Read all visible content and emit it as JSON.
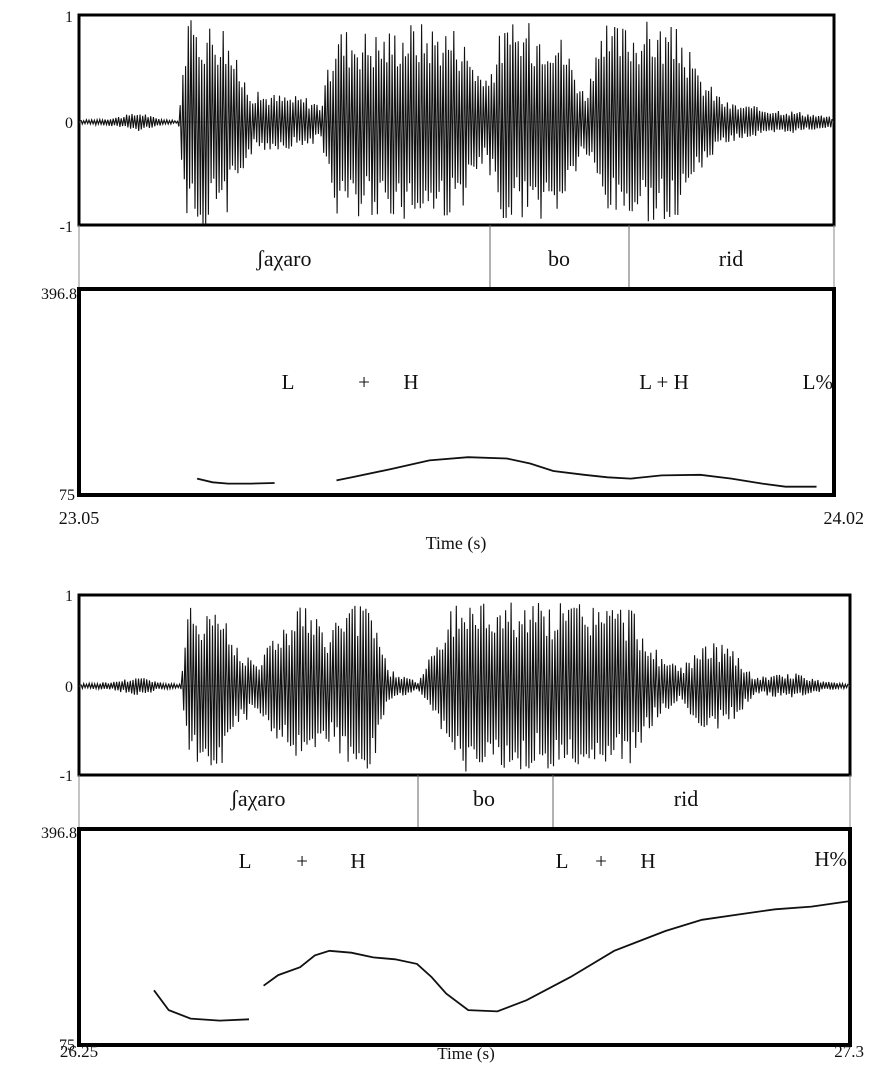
{
  "colors": {
    "ink": "#111111",
    "frame": "#000000",
    "grid": "#999999"
  },
  "chart_data": [
    {
      "type": "line",
      "subtype": "waveform-and-pitch-track",
      "waveform": {
        "y_ticks": [
          "1",
          "0",
          "-1"
        ],
        "ylim": [
          -1,
          1
        ],
        "envelope": [
          [
            0.0,
            0.02
          ],
          [
            0.04,
            0.04
          ],
          [
            0.08,
            0.1
          ],
          [
            0.1,
            0.04
          ],
          [
            0.13,
            0.01
          ],
          [
            0.14,
            1.0
          ],
          [
            0.19,
            1.0
          ],
          [
            0.21,
            0.55
          ],
          [
            0.23,
            0.3
          ],
          [
            0.3,
            0.25
          ],
          [
            0.32,
            0.18
          ],
          [
            0.34,
            0.95
          ],
          [
            0.4,
            0.9
          ],
          [
            0.44,
            1.0
          ],
          [
            0.5,
            0.95
          ],
          [
            0.52,
            0.7
          ],
          [
            0.54,
            0.4
          ],
          [
            0.56,
            0.95
          ],
          [
            0.63,
            1.0
          ],
          [
            0.65,
            0.7
          ],
          [
            0.67,
            0.3
          ],
          [
            0.7,
            0.95
          ],
          [
            0.76,
            1.0
          ],
          [
            0.8,
            0.9
          ],
          [
            0.82,
            0.5
          ],
          [
            0.86,
            0.2
          ],
          [
            0.9,
            0.15
          ],
          [
            0.96,
            0.1
          ],
          [
            1.0,
            0.05
          ]
        ]
      },
      "syllables": [
        {
          "label": "ʃaχaro",
          "start": 23.05,
          "end": 23.61
        },
        {
          "label": "bo",
          "start": 23.61,
          "end": 23.77
        },
        {
          "label": "rid",
          "start": 23.77,
          "end": 24.02
        }
      ],
      "pitch": {
        "ylim": [
          75,
          396.8
        ],
        "y_ticks": [
          "396.8",
          "75"
        ],
        "segments": [
          [
            [
              23.2,
              98
            ],
            [
              23.22,
              92
            ],
            [
              23.24,
              90
            ],
            [
              23.27,
              90
            ],
            [
              23.3,
              91
            ]
          ],
          [
            [
              23.38,
              95
            ],
            [
              23.4,
              100
            ],
            [
              23.45,
              113
            ],
            [
              23.5,
              127
            ],
            [
              23.55,
              132
            ],
            [
              23.6,
              130
            ],
            [
              23.63,
              122
            ],
            [
              23.66,
              110
            ],
            [
              23.7,
              104
            ],
            [
              23.73,
              100
            ],
            [
              23.76,
              98
            ],
            [
              23.8,
              103
            ],
            [
              23.85,
              104
            ],
            [
              23.89,
              98
            ],
            [
              23.93,
              90
            ],
            [
              23.96,
              85
            ],
            [
              24.0,
              85
            ]
          ]
        ]
      },
      "tones": [
        {
          "label": "L",
          "x": 23.308
        },
        {
          "label": "+",
          "x": 23.395
        },
        {
          "label": "H",
          "x": 23.437
        },
        {
          "label": "L + H",
          "x": 23.785
        },
        {
          "label": "L%",
          "x": 24.01
        }
      ],
      "x_range": [
        23.05,
        24.02
      ],
      "x_ticks": [
        "23.05",
        "24.02"
      ],
      "xlabel": "Time (s)"
    },
    {
      "type": "line",
      "subtype": "waveform-and-pitch-track",
      "waveform": {
        "y_ticks": [
          "1",
          "0",
          "-1"
        ],
        "ylim": [
          -1,
          1
        ],
        "envelope": [
          [
            0.0,
            0.03
          ],
          [
            0.04,
            0.05
          ],
          [
            0.08,
            0.12
          ],
          [
            0.1,
            0.05
          ],
          [
            0.13,
            0.02
          ],
          [
            0.14,
            0.9
          ],
          [
            0.18,
            1.0
          ],
          [
            0.2,
            0.5
          ],
          [
            0.23,
            0.3
          ],
          [
            0.26,
            0.7
          ],
          [
            0.29,
            1.0
          ],
          [
            0.32,
            0.6
          ],
          [
            0.34,
            0.9
          ],
          [
            0.38,
            1.0
          ],
          [
            0.4,
            0.2
          ],
          [
            0.44,
            0.05
          ],
          [
            0.49,
            1.0
          ],
          [
            0.57,
            1.0
          ],
          [
            0.6,
            0.95
          ],
          [
            0.66,
            1.0
          ],
          [
            0.72,
            0.9
          ],
          [
            0.74,
            0.5
          ],
          [
            0.78,
            0.2
          ],
          [
            0.82,
            0.55
          ],
          [
            0.85,
            0.4
          ],
          [
            0.88,
            0.1
          ],
          [
            0.93,
            0.15
          ],
          [
            0.97,
            0.05
          ],
          [
            1.0,
            0.03
          ]
        ]
      },
      "syllables": [
        {
          "label": "ʃaχaro",
          "start": 26.25,
          "end": 26.73
        },
        {
          "label": "bo",
          "start": 26.73,
          "end": 26.88
        },
        {
          "label": "rid",
          "start": 26.88,
          "end": 27.3
        }
      ],
      "pitch": {
        "ylim": [
          75,
          396.8
        ],
        "y_ticks": [
          "396.8",
          "75"
        ],
        "segments": [
          [
            [
              26.35,
              155
            ],
            [
              26.37,
              125
            ],
            [
              26.4,
              112
            ],
            [
              26.44,
              109
            ],
            [
              26.48,
              111
            ]
          ],
          [
            [
              26.5,
              162
            ],
            [
              26.52,
              178
            ],
            [
              26.55,
              190
            ],
            [
              26.57,
              208
            ],
            [
              26.59,
              215
            ],
            [
              26.62,
              212
            ],
            [
              26.65,
              205
            ],
            [
              26.68,
              202
            ],
            [
              26.71,
              195
            ],
            [
              26.73,
              175
            ],
            [
              26.75,
              150
            ],
            [
              26.78,
              125
            ],
            [
              26.82,
              123
            ],
            [
              26.86,
              140
            ],
            [
              26.92,
              175
            ],
            [
              26.98,
              215
            ],
            [
              27.05,
              245
            ],
            [
              27.1,
              262
            ],
            [
              27.15,
              270
            ],
            [
              27.2,
              278
            ],
            [
              27.25,
              282
            ],
            [
              27.3,
              290
            ]
          ]
        ]
      },
      "tones": [
        {
          "label": "L",
          "x": 26.414
        },
        {
          "label": "+",
          "x": 26.497
        },
        {
          "label": "H",
          "x": 26.555
        },
        {
          "label": "L",
          "x": 26.854
        },
        {
          "label": "+",
          "x": 26.902
        },
        {
          "label": "H",
          "x": 26.936
        },
        {
          "label": "H%",
          "x": 27.3
        }
      ],
      "x_range": [
        26.25,
        27.3
      ],
      "x_ticks": [
        "26.25",
        "27.3"
      ],
      "xlabel": "Time (s)"
    }
  ]
}
